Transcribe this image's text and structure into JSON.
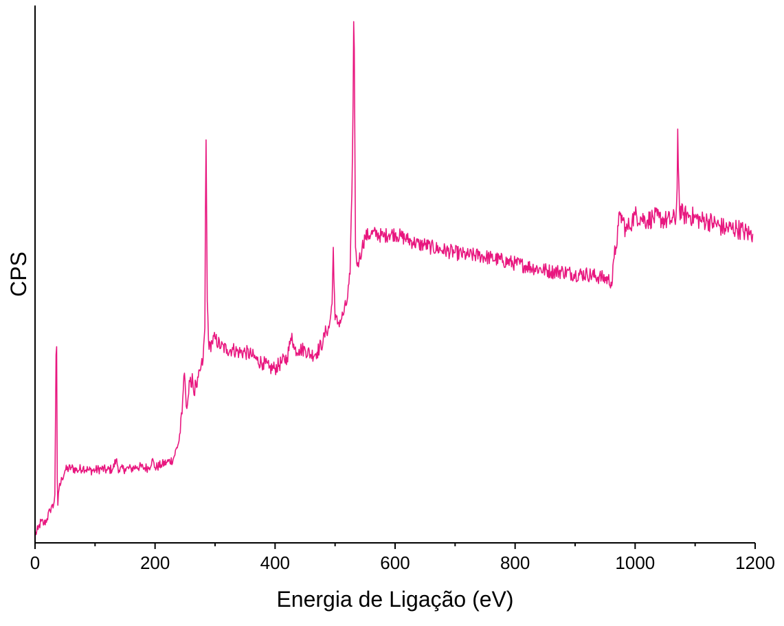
{
  "chart_data": {
    "type": "line",
    "xlabel": "Energia de Ligação (eV)",
    "ylabel": "CPS",
    "xlim": [
      0,
      1200
    ],
    "ylim": [
      0,
      100
    ],
    "y_ticks_shown": false,
    "grid": false,
    "legend": "none",
    "xticks": [
      0,
      200,
      400,
      600,
      800,
      1000,
      1200
    ],
    "xtick_labels": [
      "0",
      "200",
      "400",
      "600",
      "800",
      "1000",
      "1200"
    ],
    "x_minor_ticks": [
      100,
      300,
      500,
      700,
      900,
      1100
    ],
    "series": [
      {
        "color": "#e8177f",
        "x": [
          0,
          5,
          10,
          15,
          20,
          25,
          28,
          30,
          33,
          35,
          36,
          37,
          38,
          40,
          45,
          50,
          60,
          70,
          80,
          90,
          100,
          110,
          120,
          130,
          135,
          140,
          150,
          160,
          170,
          180,
          190,
          195,
          200,
          210,
          220,
          230,
          240,
          245,
          248,
          250,
          253,
          255,
          258,
          260,
          262,
          265,
          268,
          270,
          275,
          280,
          283,
          284,
          285,
          287,
          290,
          295,
          300,
          310,
          320,
          330,
          340,
          350,
          360,
          370,
          380,
          390,
          400,
          410,
          420,
          425,
          428,
          432,
          440,
          450,
          460,
          470,
          480,
          485,
          490,
          495,
          497,
          500,
          505,
          510,
          515,
          520,
          525,
          528,
          530,
          531,
          532,
          534,
          536,
          540,
          545,
          550,
          560,
          570,
          580,
          590,
          600,
          610,
          620,
          630,
          640,
          650,
          660,
          680,
          700,
          720,
          740,
          760,
          780,
          800,
          820,
          840,
          860,
          880,
          900,
          920,
          940,
          955,
          962,
          965,
          968,
          972,
          975,
          980,
          985,
          990,
          995,
          1000,
          1010,
          1020,
          1030,
          1040,
          1050,
          1060,
          1068,
          1070,
          1071,
          1072,
          1074,
          1080,
          1090,
          1100,
          1110,
          1120,
          1130,
          1140,
          1150,
          1160,
          1170,
          1180,
          1190,
          1196
        ],
        "values": [
          1.5,
          2.5,
          4.0,
          3.5,
          4.5,
          6.0,
          7.0,
          6.5,
          9.0,
          35.0,
          36.5,
          12.0,
          7.0,
          10.0,
          12.0,
          13.5,
          14.0,
          13.5,
          14.0,
          13.5,
          13.5,
          13.8,
          13.5,
          13.8,
          15.5,
          13.5,
          13.8,
          13.8,
          14.2,
          14.0,
          14.0,
          15.5,
          14.0,
          14.5,
          15.0,
          15.5,
          19.0,
          24.0,
          31.0,
          30.0,
          25.0,
          27.0,
          30.0,
          29.0,
          31.5,
          27.5,
          30.0,
          29.0,
          32.0,
          34.0,
          40.0,
          62.0,
          75.0,
          45.0,
          36.0,
          37.5,
          38.0,
          36.5,
          36.0,
          36.0,
          35.5,
          35.5,
          35.0,
          34.0,
          33.5,
          32.5,
          32.5,
          33.5,
          34.5,
          37.0,
          39.0,
          36.0,
          36.0,
          36.0,
          35.0,
          35.5,
          37.5,
          39.5,
          40.0,
          44.5,
          55.0,
          41.5,
          41.0,
          41.5,
          43.0,
          45.0,
          50.0,
          65.0,
          82.0,
          97.0,
          92.0,
          55.0,
          52.0,
          52.5,
          55.0,
          57.0,
          57.5,
          57.5,
          57.0,
          57.5,
          57.5,
          57.0,
          56.5,
          56.0,
          55.5,
          55.5,
          55.0,
          54.5,
          54.0,
          53.5,
          53.5,
          53.0,
          52.5,
          52.0,
          51.5,
          51.0,
          50.5,
          50.5,
          50.0,
          50.0,
          49.5,
          49.0,
          48.5,
          53.0,
          55.0,
          59.0,
          61.0,
          60.0,
          58.0,
          59.0,
          60.0,
          61.0,
          60.5,
          60.0,
          60.5,
          60.5,
          60.0,
          60.0,
          60.5,
          66.0,
          77.0,
          70.0,
          62.0,
          61.0,
          61.0,
          60.5,
          60.0,
          60.0,
          59.5,
          59.0,
          58.5,
          58.5,
          58.5,
          58.0,
          57.5,
          57.5
        ]
      }
    ]
  }
}
